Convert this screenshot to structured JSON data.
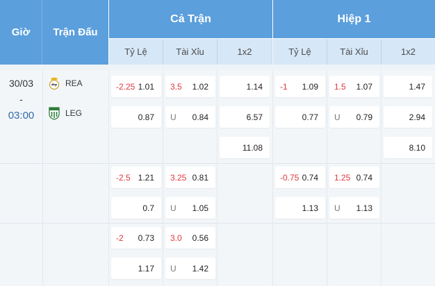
{
  "header": {
    "gio": "Giờ",
    "tran_dau": "Trận Đấu",
    "full_match": "Cả Trận",
    "half1": "Hiệp 1",
    "sub": [
      "Tỷ Lệ",
      "Tài Xỉu",
      "1x2",
      "Tỷ Lệ",
      "Tài Xỉu",
      "1x2"
    ]
  },
  "match": {
    "date": "30/03",
    "dash": "-",
    "time": "03:00",
    "home": "REA",
    "away": "LEG"
  },
  "rows": [
    {
      "ft_hdp": {
        "line": "-2.25",
        "home": "1.01",
        "away": "0.87"
      },
      "ft_ou": {
        "line": "3.5",
        "over": "1.02",
        "u": "U",
        "under": "0.84"
      },
      "ft_1x2": {
        "home": "1.14",
        "away": "6.57",
        "draw": "11.08"
      },
      "h1_hdp": {
        "line": "-1",
        "home": "1.09",
        "away": "0.77"
      },
      "h1_ou": {
        "line": "1.5",
        "over": "1.07",
        "u": "U",
        "under": "0.79"
      },
      "h1_1x2": {
        "home": "1.47",
        "away": "2.94",
        "draw": "8.10"
      }
    },
    {
      "ft_hdp": {
        "line": "-2.5",
        "home": "1.21",
        "away": "0.7"
      },
      "ft_ou": {
        "line": "3.25",
        "over": "0.81",
        "u": "U",
        "under": "1.05"
      },
      "h1_hdp": {
        "line": "-0.75",
        "home": "0.74",
        "away": "1.13"
      },
      "h1_ou": {
        "line": "1.25",
        "over": "0.74",
        "u": "U",
        "under": "1.13"
      }
    },
    {
      "ft_hdp": {
        "line": "-2",
        "home": "0.73",
        "away": "1.17"
      },
      "ft_ou": {
        "line": "3.0",
        "over": "0.56",
        "u": "U",
        "under": "1.42"
      }
    }
  ],
  "colors": {
    "header_blue": "#5b9fdc",
    "subheader": "#d6e7f7",
    "handicap_red": "#e0383e"
  }
}
